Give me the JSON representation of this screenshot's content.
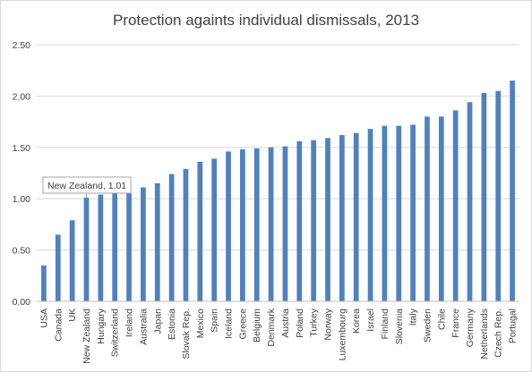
{
  "chart_data": {
    "type": "bar",
    "title": "Protection againts individual dismissals, 2013",
    "xlabel": "",
    "ylabel": "",
    "ylim": [
      0,
      2.5
    ],
    "yticks": [
      "0.00",
      "0.50",
      "1.00",
      "1.50",
      "2.00",
      "2.50"
    ],
    "grid": true,
    "legend": "none",
    "bar_color": "#4f81bd",
    "grid_color": "#d9d9d9",
    "categories": [
      "USA",
      "Canada",
      "UK",
      "New Zealand",
      "Hungary",
      "Switzerland",
      "Ireland",
      "Australia",
      "Japan",
      "Estonia",
      "Slovak Rep.",
      "Mexico",
      "Spain",
      "Iceland",
      "Greece",
      "Belgium",
      "Denmark",
      "Austria",
      "Poland",
      "Turkey",
      "Norway",
      "Luxembourg",
      "Korea",
      "Israel",
      "Finland",
      "Slovenia",
      "Italy",
      "Sweden",
      "Chile",
      "France",
      "Germany",
      "Netherlands",
      "Czech Rep.",
      "Portugal"
    ],
    "values": [
      0.35,
      0.65,
      0.79,
      1.01,
      1.04,
      1.05,
      1.05,
      1.11,
      1.15,
      1.24,
      1.29,
      1.36,
      1.39,
      1.46,
      1.48,
      1.49,
      1.5,
      1.51,
      1.56,
      1.57,
      1.59,
      1.62,
      1.64,
      1.68,
      1.71,
      1.71,
      1.72,
      1.8,
      1.8,
      1.86,
      1.94,
      2.03,
      2.05,
      2.15
    ],
    "annotation": {
      "text": "New Zealand, 1.01",
      "category": "New Zealand"
    }
  }
}
